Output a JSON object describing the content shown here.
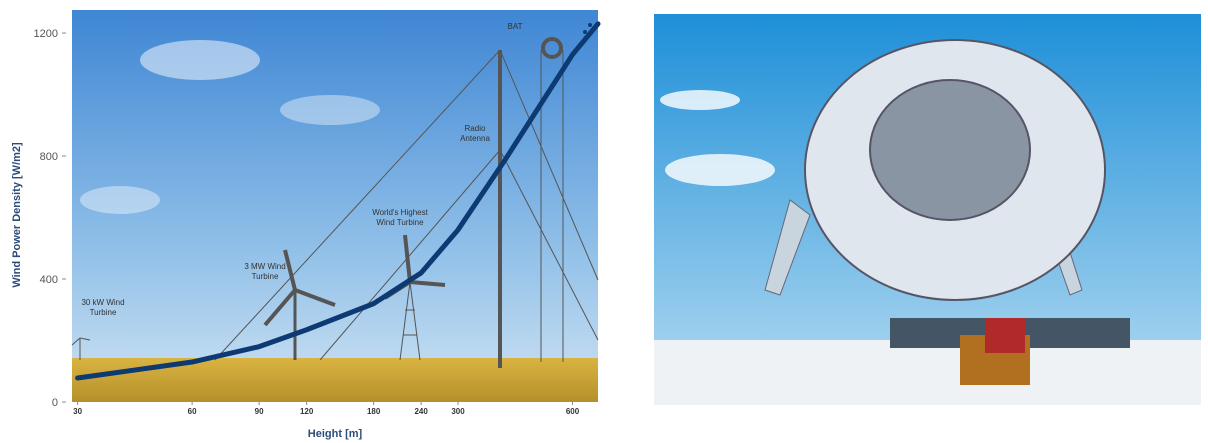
{
  "chart_data": {
    "type": "line",
    "x_label": "Height [m]",
    "y_label": "Wind Power Density [W/m2]",
    "x": [
      30,
      60,
      90,
      120,
      180,
      240,
      300,
      400,
      600,
      700
    ],
    "values": [
      78,
      130,
      180,
      235,
      320,
      420,
      560,
      790,
      1130,
      1230
    ],
    "color": "#0d3a73",
    "xscale": "log",
    "xlim": [
      29,
      700
    ],
    "ylim": [
      0,
      1275
    ],
    "xticks": [
      30,
      60,
      90,
      120,
      180,
      240,
      300,
      600
    ],
    "yticks": [
      0,
      400,
      800,
      1200
    ],
    "annotations": [
      "30 kW Wind Turbine",
      "3 MW Wind Turbine",
      "World's Highest Wind Turbine",
      "Radio Antenna",
      "BAT"
    ]
  }
}
